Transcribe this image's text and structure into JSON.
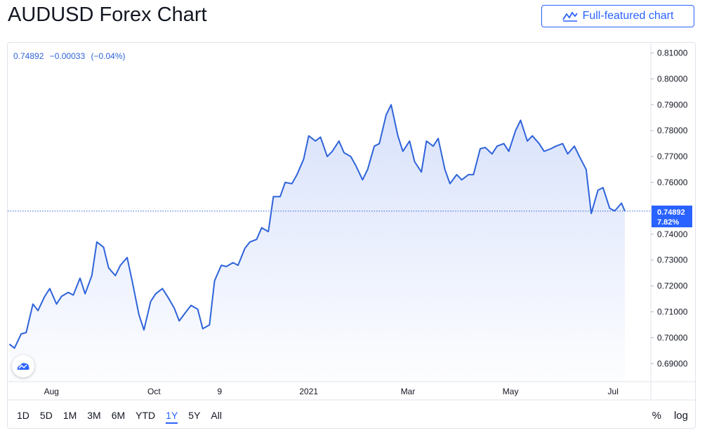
{
  "header": {
    "title": "AUDUSD Forex Chart",
    "full_chart_label": "Full-featured chart"
  },
  "legend": {
    "last": "0.74892",
    "change": "−0.00033",
    "change_pct": "(−0.04%)"
  },
  "price_badge": {
    "value": "0.74892",
    "pct": "7.82%"
  },
  "range_buttons": [
    "1D",
    "5D",
    "1M",
    "3M",
    "6M",
    "YTD",
    "1Y",
    "5Y",
    "All"
  ],
  "active_range": "1Y",
  "scale_buttons": {
    "percent": "%",
    "log": "log"
  },
  "colors": {
    "line": "#2e63d9",
    "fill_top": "#d6e0fb",
    "badge": "#2962ff",
    "axis_text": "#131722",
    "grid": "#e0e3eb"
  },
  "chart_data": {
    "type": "area",
    "symbol": "AUDUSD",
    "x_tick_labels": [
      "Aug",
      "Oct",
      "9",
      "2021",
      "Mar",
      "May",
      "Jul"
    ],
    "y_tick_labels": [
      "0.81000",
      "0.80000",
      "0.79000",
      "0.78000",
      "0.77000",
      "0.76000",
      "0.75000",
      "0.74000",
      "0.73000",
      "0.72000",
      "0.71000",
      "0.70000",
      "0.69000"
    ],
    "ylim": [
      0.685,
      0.8125
    ],
    "last_value": 0.74892,
    "grid": false,
    "series": [
      {
        "x": [
          "2020-07-07",
          "2020-07-10",
          "2020-07-14",
          "2020-07-17",
          "2020-07-21",
          "2020-07-24",
          "2020-07-28",
          "2020-07-31",
          "2020-08-04",
          "2020-08-07",
          "2020-08-11",
          "2020-08-14",
          "2020-08-18",
          "2020-08-21",
          "2020-08-25",
          "2020-08-28",
          "2020-09-01",
          "2020-09-04",
          "2020-09-08",
          "2020-09-11",
          "2020-09-15",
          "2020-09-18",
          "2020-09-22",
          "2020-09-25",
          "2020-09-29",
          "2020-10-02",
          "2020-10-06",
          "2020-10-09",
          "2020-10-13",
          "2020-10-16",
          "2020-10-20",
          "2020-10-23",
          "2020-10-27",
          "2020-10-30",
          "2020-11-03",
          "2020-11-06",
          "2020-11-10",
          "2020-11-13",
          "2020-11-17",
          "2020-11-20",
          "2020-11-24",
          "2020-11-27",
          "2020-12-01",
          "2020-12-04",
          "2020-12-08",
          "2020-12-11",
          "2020-12-15",
          "2020-12-18",
          "2020-12-22",
          "2020-12-25",
          "2020-12-29",
          "2021-01-01",
          "2021-01-05",
          "2021-01-08",
          "2021-01-12",
          "2021-01-15",
          "2021-01-19",
          "2021-01-22",
          "2021-01-26",
          "2021-01-29",
          "2021-02-02",
          "2021-02-05",
          "2021-02-09",
          "2021-02-12",
          "2021-02-16",
          "2021-02-19",
          "2021-02-23",
          "2021-02-26",
          "2021-03-02",
          "2021-03-05",
          "2021-03-09",
          "2021-03-12",
          "2021-03-16",
          "2021-03-19",
          "2021-03-23",
          "2021-03-26",
          "2021-03-30",
          "2021-04-02",
          "2021-04-06",
          "2021-04-09",
          "2021-04-13",
          "2021-04-16",
          "2021-04-20",
          "2021-04-23",
          "2021-04-27",
          "2021-04-30",
          "2021-05-04",
          "2021-05-07",
          "2021-05-11",
          "2021-05-14",
          "2021-05-18",
          "2021-05-21",
          "2021-05-25",
          "2021-05-28",
          "2021-06-01",
          "2021-06-04",
          "2021-06-08",
          "2021-06-11",
          "2021-06-15",
          "2021-06-18",
          "2021-06-22",
          "2021-06-25",
          "2021-06-29",
          "2021-07-02",
          "2021-07-06",
          "2021-07-08"
        ],
        "y": [
          0.6975,
          0.696,
          0.7015,
          0.702,
          0.713,
          0.7105,
          0.716,
          0.719,
          0.713,
          0.716,
          0.7175,
          0.7165,
          0.723,
          0.717,
          0.724,
          0.737,
          0.735,
          0.727,
          0.724,
          0.728,
          0.731,
          0.722,
          0.709,
          0.703,
          0.714,
          0.717,
          0.719,
          0.716,
          0.7115,
          0.7065,
          0.71,
          0.7125,
          0.711,
          0.7035,
          0.705,
          0.722,
          0.728,
          0.7275,
          0.729,
          0.728,
          0.7345,
          0.737,
          0.738,
          0.7425,
          0.741,
          0.7545,
          0.7545,
          0.76,
          0.7595,
          0.763,
          0.769,
          0.778,
          0.776,
          0.7775,
          0.77,
          0.772,
          0.776,
          0.7715,
          0.77,
          0.7665,
          0.761,
          0.765,
          0.774,
          0.775,
          0.786,
          0.79,
          0.778,
          0.772,
          0.776,
          0.768,
          0.764,
          0.776,
          0.774,
          0.777,
          0.765,
          0.7595,
          0.763,
          0.761,
          0.763,
          0.763,
          0.773,
          0.7735,
          0.771,
          0.774,
          0.775,
          0.772,
          0.78,
          0.784,
          0.776,
          0.778,
          0.775,
          0.772,
          0.773,
          0.774,
          0.775,
          0.771,
          0.774,
          0.77,
          0.765,
          0.748,
          0.757,
          0.758,
          0.75,
          0.749,
          0.752,
          0.74892
        ]
      }
    ]
  }
}
